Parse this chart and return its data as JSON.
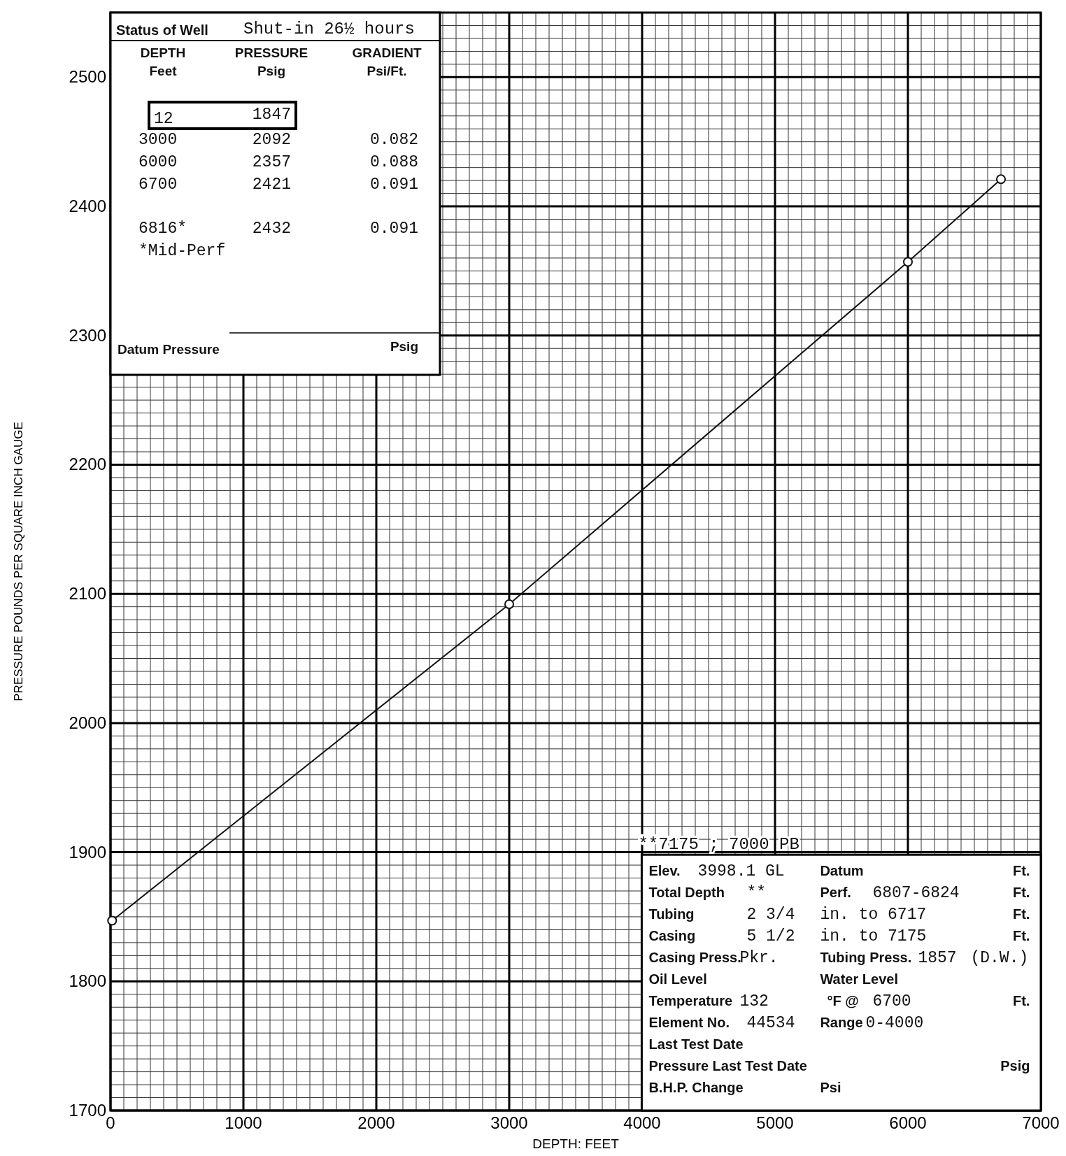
{
  "chart_data": {
    "type": "line",
    "xlabel": "DEPTH: FEET",
    "ylabel": "PRESSURE POUNDS PER SQUARE INCH GAUGE",
    "x": [
      12,
      3000,
      6000,
      6700
    ],
    "series": [
      {
        "color": "#111111",
        "values": [
          1847,
          2092,
          2357,
          2421
        ]
      }
    ],
    "xlim": [
      0,
      7000
    ],
    "xticks": [
      0,
      1000,
      2000,
      3000,
      4000,
      5000,
      6000,
      7000
    ],
    "ylim": [
      1700,
      2550
    ],
    "yticks": [
      1700,
      1800,
      1900,
      2000,
      2100,
      2200,
      2300,
      2400,
      2500
    ],
    "grid": true,
    "marker": "circle",
    "line_style": "solid",
    "annotations": [
      "Status of Well",
      "Shut-in 26½ hours",
      "DEPTH",
      "Feet",
      "PRESSURE",
      "Psig",
      "GRADIENT",
      "Psi/Ft.",
      "12",
      "1847",
      "3000",
      "2092",
      "0.082",
      "6000",
      "2357",
      "0.088",
      "6700",
      "2421",
      "0.091",
      "6816*",
      "2432",
      "0.091",
      "*Mid-Perf",
      "Datum Pressure",
      "Psig",
      "**7175 ; 7000 PB",
      "Elev.",
      "3998.1 GL",
      "Datum",
      "Ft.",
      "Total Depth",
      "**",
      "Perf.",
      "6807-6824",
      "Ft.",
      "Tubing",
      "2 3/4",
      "in. to 6717",
      "Ft.",
      "Casing",
      "5 1/2",
      "in. to 7175",
      "Ft.",
      "Casing Press.",
      "Pkr.",
      "Tubing Press.",
      "1857",
      "(D.W.)",
      "Oil Level",
      "Water Level",
      "Temperature",
      "132",
      "°F @",
      "6700",
      "Ft.",
      "Element No.",
      "44534",
      "Range",
      "0-4000",
      "Last Test Date",
      "Pressure Last Test Date",
      "Psig",
      "B.H.P. Change",
      "Psi"
    ]
  }
}
